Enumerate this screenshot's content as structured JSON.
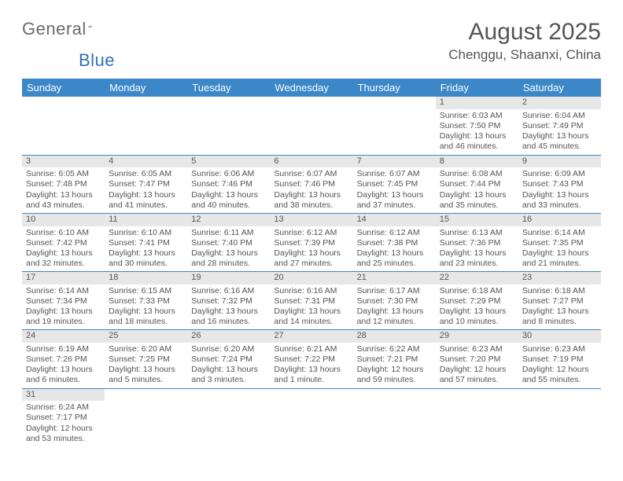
{
  "brand": {
    "word1": "General",
    "word2": "Blue"
  },
  "title": "August 2025",
  "location": "Chenggu, Shaanxi, China",
  "header_bg": "#3b87c8",
  "header_fg": "#ffffff",
  "daynum_bg": "#e7e7e7",
  "rule_color": "#3b87c8",
  "text_color": "#555555",
  "weekdays": [
    "Sunday",
    "Monday",
    "Tuesday",
    "Wednesday",
    "Thursday",
    "Friday",
    "Saturday"
  ],
  "weeks": [
    [
      null,
      null,
      null,
      null,
      null,
      {
        "n": "1",
        "sr": "Sunrise: 6:03 AM",
        "ss": "Sunset: 7:50 PM",
        "dl": "Daylight: 13 hours and 46 minutes."
      },
      {
        "n": "2",
        "sr": "Sunrise: 6:04 AM",
        "ss": "Sunset: 7:49 PM",
        "dl": "Daylight: 13 hours and 45 minutes."
      }
    ],
    [
      {
        "n": "3",
        "sr": "Sunrise: 6:05 AM",
        "ss": "Sunset: 7:48 PM",
        "dl": "Daylight: 13 hours and 43 minutes."
      },
      {
        "n": "4",
        "sr": "Sunrise: 6:05 AM",
        "ss": "Sunset: 7:47 PM",
        "dl": "Daylight: 13 hours and 41 minutes."
      },
      {
        "n": "5",
        "sr": "Sunrise: 6:06 AM",
        "ss": "Sunset: 7:46 PM",
        "dl": "Daylight: 13 hours and 40 minutes."
      },
      {
        "n": "6",
        "sr": "Sunrise: 6:07 AM",
        "ss": "Sunset: 7:46 PM",
        "dl": "Daylight: 13 hours and 38 minutes."
      },
      {
        "n": "7",
        "sr": "Sunrise: 6:07 AM",
        "ss": "Sunset: 7:45 PM",
        "dl": "Daylight: 13 hours and 37 minutes."
      },
      {
        "n": "8",
        "sr": "Sunrise: 6:08 AM",
        "ss": "Sunset: 7:44 PM",
        "dl": "Daylight: 13 hours and 35 minutes."
      },
      {
        "n": "9",
        "sr": "Sunrise: 6:09 AM",
        "ss": "Sunset: 7:43 PM",
        "dl": "Daylight: 13 hours and 33 minutes."
      }
    ],
    [
      {
        "n": "10",
        "sr": "Sunrise: 6:10 AM",
        "ss": "Sunset: 7:42 PM",
        "dl": "Daylight: 13 hours and 32 minutes."
      },
      {
        "n": "11",
        "sr": "Sunrise: 6:10 AM",
        "ss": "Sunset: 7:41 PM",
        "dl": "Daylight: 13 hours and 30 minutes."
      },
      {
        "n": "12",
        "sr": "Sunrise: 6:11 AM",
        "ss": "Sunset: 7:40 PM",
        "dl": "Daylight: 13 hours and 28 minutes."
      },
      {
        "n": "13",
        "sr": "Sunrise: 6:12 AM",
        "ss": "Sunset: 7:39 PM",
        "dl": "Daylight: 13 hours and 27 minutes."
      },
      {
        "n": "14",
        "sr": "Sunrise: 6:12 AM",
        "ss": "Sunset: 7:38 PM",
        "dl": "Daylight: 13 hours and 25 minutes."
      },
      {
        "n": "15",
        "sr": "Sunrise: 6:13 AM",
        "ss": "Sunset: 7:36 PM",
        "dl": "Daylight: 13 hours and 23 minutes."
      },
      {
        "n": "16",
        "sr": "Sunrise: 6:14 AM",
        "ss": "Sunset: 7:35 PM",
        "dl": "Daylight: 13 hours and 21 minutes."
      }
    ],
    [
      {
        "n": "17",
        "sr": "Sunrise: 6:14 AM",
        "ss": "Sunset: 7:34 PM",
        "dl": "Daylight: 13 hours and 19 minutes."
      },
      {
        "n": "18",
        "sr": "Sunrise: 6:15 AM",
        "ss": "Sunset: 7:33 PM",
        "dl": "Daylight: 13 hours and 18 minutes."
      },
      {
        "n": "19",
        "sr": "Sunrise: 6:16 AM",
        "ss": "Sunset: 7:32 PM",
        "dl": "Daylight: 13 hours and 16 minutes."
      },
      {
        "n": "20",
        "sr": "Sunrise: 6:16 AM",
        "ss": "Sunset: 7:31 PM",
        "dl": "Daylight: 13 hours and 14 minutes."
      },
      {
        "n": "21",
        "sr": "Sunrise: 6:17 AM",
        "ss": "Sunset: 7:30 PM",
        "dl": "Daylight: 13 hours and 12 minutes."
      },
      {
        "n": "22",
        "sr": "Sunrise: 6:18 AM",
        "ss": "Sunset: 7:29 PM",
        "dl": "Daylight: 13 hours and 10 minutes."
      },
      {
        "n": "23",
        "sr": "Sunrise: 6:18 AM",
        "ss": "Sunset: 7:27 PM",
        "dl": "Daylight: 13 hours and 8 minutes."
      }
    ],
    [
      {
        "n": "24",
        "sr": "Sunrise: 6:19 AM",
        "ss": "Sunset: 7:26 PM",
        "dl": "Daylight: 13 hours and 6 minutes."
      },
      {
        "n": "25",
        "sr": "Sunrise: 6:20 AM",
        "ss": "Sunset: 7:25 PM",
        "dl": "Daylight: 13 hours and 5 minutes."
      },
      {
        "n": "26",
        "sr": "Sunrise: 6:20 AM",
        "ss": "Sunset: 7:24 PM",
        "dl": "Daylight: 13 hours and 3 minutes."
      },
      {
        "n": "27",
        "sr": "Sunrise: 6:21 AM",
        "ss": "Sunset: 7:22 PM",
        "dl": "Daylight: 13 hours and 1 minute."
      },
      {
        "n": "28",
        "sr": "Sunrise: 6:22 AM",
        "ss": "Sunset: 7:21 PM",
        "dl": "Daylight: 12 hours and 59 minutes."
      },
      {
        "n": "29",
        "sr": "Sunrise: 6:23 AM",
        "ss": "Sunset: 7:20 PM",
        "dl": "Daylight: 12 hours and 57 minutes."
      },
      {
        "n": "30",
        "sr": "Sunrise: 6:23 AM",
        "ss": "Sunset: 7:19 PM",
        "dl": "Daylight: 12 hours and 55 minutes."
      }
    ],
    [
      {
        "n": "31",
        "sr": "Sunrise: 6:24 AM",
        "ss": "Sunset: 7:17 PM",
        "dl": "Daylight: 12 hours and 53 minutes."
      },
      null,
      null,
      null,
      null,
      null,
      null
    ]
  ]
}
